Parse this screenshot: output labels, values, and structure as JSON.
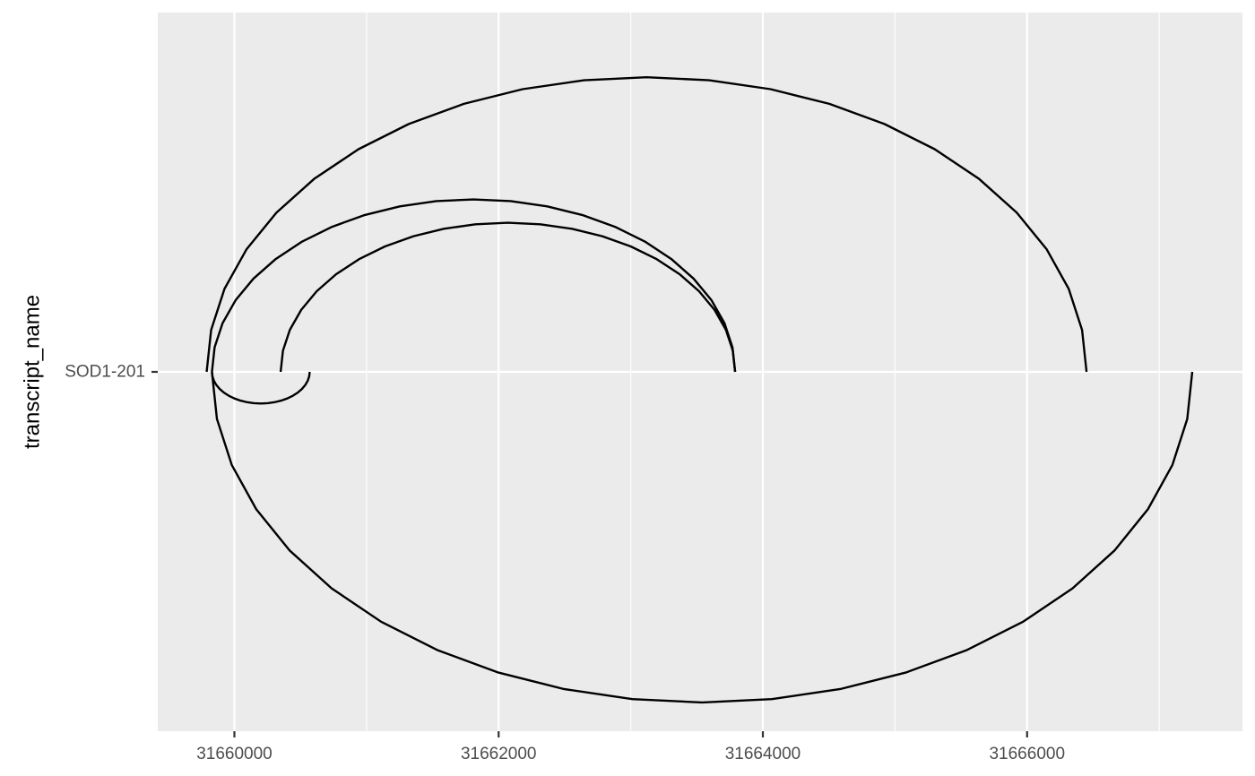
{
  "chart_data": {
    "type": "line",
    "title": "",
    "xlabel": "",
    "ylabel": "transcript_name",
    "y_categories": [
      "SOD1-201"
    ],
    "xlim": [
      31659420,
      31667630
    ],
    "x_ticks": [
      31660000,
      31662000,
      31664000,
      31666000
    ],
    "x_tick_labels": [
      "31660000",
      "31662000",
      "31664000",
      "31666000"
    ],
    "grid": true,
    "legend": "none",
    "colors": {
      "panel": "#ebebeb",
      "grid": "#ffffff",
      "line": "#000000",
      "text": "#4d4d4d"
    },
    "arcs": [
      {
        "start": 31659790,
        "end": 31666450,
        "side": "above",
        "height": 0.82
      },
      {
        "start": 31659830,
        "end": 31663790,
        "side": "above",
        "height": 0.48
      },
      {
        "start": 31660350,
        "end": 31663790,
        "side": "above",
        "height": 0.415
      },
      {
        "start": 31659830,
        "end": 31660570,
        "side": "below",
        "height": 0.088
      },
      {
        "start": 31659830,
        "end": 31667250,
        "side": "below",
        "height": 0.92
      }
    ]
  }
}
